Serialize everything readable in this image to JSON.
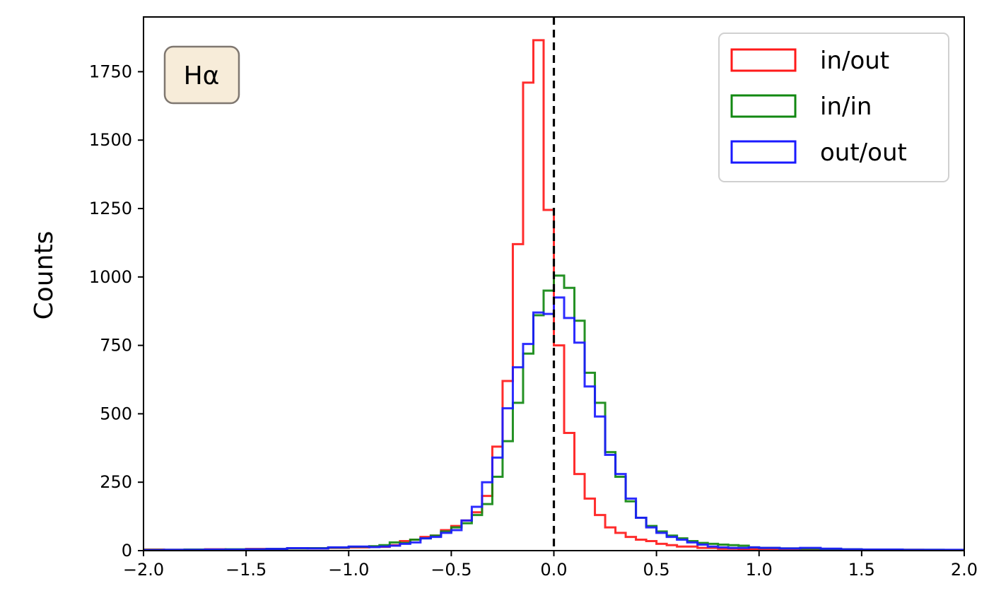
{
  "chart_data": {
    "type": "histogram-step",
    "xlim": [
      -2.0,
      2.0
    ],
    "ylim": [
      0,
      1950
    ],
    "ylabel": "Counts",
    "xlabel": "",
    "annotation": "Hα",
    "legend_position": "top-right",
    "x_ticks": [
      -2.0,
      -1.5,
      -1.0,
      -0.5,
      0.0,
      0.5,
      1.0,
      1.5,
      2.0
    ],
    "x_tick_labels": [
      "−2.0",
      "−1.5",
      "−1.0",
      "−0.5",
      "0.0",
      "0.5",
      "1.0",
      "1.5",
      "2.0"
    ],
    "y_ticks": [
      0,
      250,
      500,
      750,
      1000,
      1250,
      1500,
      1750
    ],
    "y_tick_labels": [
      "0",
      "250",
      "500",
      "750",
      "1000",
      "1250",
      "1500",
      "1750"
    ],
    "vline_x": 0.0,
    "bin_width": 0.05,
    "series": [
      {
        "name": "in/out",
        "color": "#ff1a1a",
        "bins": [
          [
            -2.0,
            4
          ],
          [
            -1.9,
            3
          ],
          [
            -1.8,
            4
          ],
          [
            -1.7,
            5
          ],
          [
            -1.6,
            4
          ],
          [
            -1.5,
            6
          ],
          [
            -1.4,
            6
          ],
          [
            -1.3,
            8
          ],
          [
            -1.2,
            8
          ],
          [
            -1.1,
            10
          ],
          [
            -1.0,
            12
          ],
          [
            -0.9,
            14
          ],
          [
            -0.8,
            20
          ],
          [
            -0.75,
            35
          ],
          [
            -0.7,
            40
          ],
          [
            -0.65,
            50
          ],
          [
            -0.6,
            55
          ],
          [
            -0.55,
            75
          ],
          [
            -0.5,
            90
          ],
          [
            -0.45,
            110
          ],
          [
            -0.4,
            140
          ],
          [
            -0.35,
            200
          ],
          [
            -0.3,
            380
          ],
          [
            -0.25,
            620
          ],
          [
            -0.2,
            1120
          ],
          [
            -0.15,
            1710
          ],
          [
            -0.1,
            1865
          ],
          [
            -0.05,
            1245
          ],
          [
            0.0,
            750
          ],
          [
            0.05,
            430
          ],
          [
            0.1,
            280
          ],
          [
            0.15,
            190
          ],
          [
            0.2,
            130
          ],
          [
            0.25,
            85
          ],
          [
            0.3,
            65
          ],
          [
            0.35,
            50
          ],
          [
            0.4,
            40
          ],
          [
            0.45,
            35
          ],
          [
            0.5,
            25
          ],
          [
            0.55,
            20
          ],
          [
            0.6,
            15
          ],
          [
            0.7,
            10
          ],
          [
            0.8,
            7
          ],
          [
            0.9,
            5
          ],
          [
            1.0,
            5
          ],
          [
            1.2,
            4
          ],
          [
            1.4,
            3
          ],
          [
            1.6,
            3
          ],
          [
            1.8,
            2
          ],
          [
            2.0,
            0
          ]
        ]
      },
      {
        "name": "in/in",
        "color": "#118811",
        "bins": [
          [
            -2.0,
            3
          ],
          [
            -1.9,
            3
          ],
          [
            -1.8,
            4
          ],
          [
            -1.7,
            4
          ],
          [
            -1.6,
            5
          ],
          [
            -1.5,
            5
          ],
          [
            -1.4,
            6
          ],
          [
            -1.3,
            8
          ],
          [
            -1.2,
            9
          ],
          [
            -1.1,
            11
          ],
          [
            -1.0,
            14
          ],
          [
            -0.9,
            16
          ],
          [
            -0.85,
            20
          ],
          [
            -0.8,
            30
          ],
          [
            -0.75,
            28
          ],
          [
            -0.7,
            40
          ],
          [
            -0.65,
            45
          ],
          [
            -0.6,
            55
          ],
          [
            -0.55,
            70
          ],
          [
            -0.5,
            85
          ],
          [
            -0.45,
            100
          ],
          [
            -0.4,
            130
          ],
          [
            -0.35,
            170
          ],
          [
            -0.3,
            270
          ],
          [
            -0.25,
            400
          ],
          [
            -0.2,
            540
          ],
          [
            -0.15,
            720
          ],
          [
            -0.1,
            860
          ],
          [
            -0.05,
            950
          ],
          [
            0.0,
            1005
          ],
          [
            0.05,
            960
          ],
          [
            0.1,
            840
          ],
          [
            0.15,
            650
          ],
          [
            0.2,
            540
          ],
          [
            0.25,
            360
          ],
          [
            0.3,
            270
          ],
          [
            0.35,
            180
          ],
          [
            0.4,
            120
          ],
          [
            0.45,
            90
          ],
          [
            0.5,
            70
          ],
          [
            0.55,
            55
          ],
          [
            0.6,
            45
          ],
          [
            0.65,
            35
          ],
          [
            0.7,
            28
          ],
          [
            0.75,
            25
          ],
          [
            0.8,
            22
          ],
          [
            0.85,
            20
          ],
          [
            0.9,
            18
          ],
          [
            0.95,
            12
          ],
          [
            1.0,
            10
          ],
          [
            1.1,
            8
          ],
          [
            1.2,
            7
          ],
          [
            1.3,
            6
          ],
          [
            1.4,
            5
          ],
          [
            1.5,
            4
          ],
          [
            1.6,
            4
          ],
          [
            1.7,
            3
          ],
          [
            1.8,
            3
          ],
          [
            1.9,
            2
          ],
          [
            2.0,
            0
          ]
        ]
      },
      {
        "name": "out/out",
        "color": "#1a1aff",
        "bins": [
          [
            -2.0,
            2
          ],
          [
            -1.9,
            3
          ],
          [
            -1.8,
            3
          ],
          [
            -1.7,
            4
          ],
          [
            -1.6,
            4
          ],
          [
            -1.5,
            5
          ],
          [
            -1.4,
            6
          ],
          [
            -1.3,
            9
          ],
          [
            -1.2,
            8
          ],
          [
            -1.1,
            12
          ],
          [
            -1.0,
            15
          ],
          [
            -0.9,
            13
          ],
          [
            -0.85,
            15
          ],
          [
            -0.8,
            18
          ],
          [
            -0.75,
            25
          ],
          [
            -0.7,
            30
          ],
          [
            -0.65,
            45
          ],
          [
            -0.6,
            50
          ],
          [
            -0.55,
            65
          ],
          [
            -0.5,
            75
          ],
          [
            -0.45,
            110
          ],
          [
            -0.4,
            160
          ],
          [
            -0.35,
            250
          ],
          [
            -0.3,
            340
          ],
          [
            -0.25,
            520
          ],
          [
            -0.2,
            670
          ],
          [
            -0.15,
            755
          ],
          [
            -0.1,
            870
          ],
          [
            -0.05,
            865
          ],
          [
            0.0,
            925
          ],
          [
            0.05,
            850
          ],
          [
            0.1,
            760
          ],
          [
            0.15,
            600
          ],
          [
            0.2,
            490
          ],
          [
            0.25,
            350
          ],
          [
            0.3,
            280
          ],
          [
            0.35,
            190
          ],
          [
            0.4,
            120
          ],
          [
            0.45,
            85
          ],
          [
            0.5,
            65
          ],
          [
            0.55,
            50
          ],
          [
            0.6,
            40
          ],
          [
            0.65,
            30
          ],
          [
            0.7,
            22
          ],
          [
            0.75,
            15
          ],
          [
            0.8,
            12
          ],
          [
            0.85,
            10
          ],
          [
            0.9,
            10
          ],
          [
            0.95,
            12
          ],
          [
            1.0,
            10
          ],
          [
            1.1,
            8
          ],
          [
            1.2,
            10
          ],
          [
            1.3,
            7
          ],
          [
            1.4,
            5
          ],
          [
            1.5,
            4
          ],
          [
            1.6,
            4
          ],
          [
            1.7,
            3
          ],
          [
            1.8,
            3
          ],
          [
            1.9,
            3
          ],
          [
            2.0,
            0
          ]
        ]
      }
    ]
  }
}
